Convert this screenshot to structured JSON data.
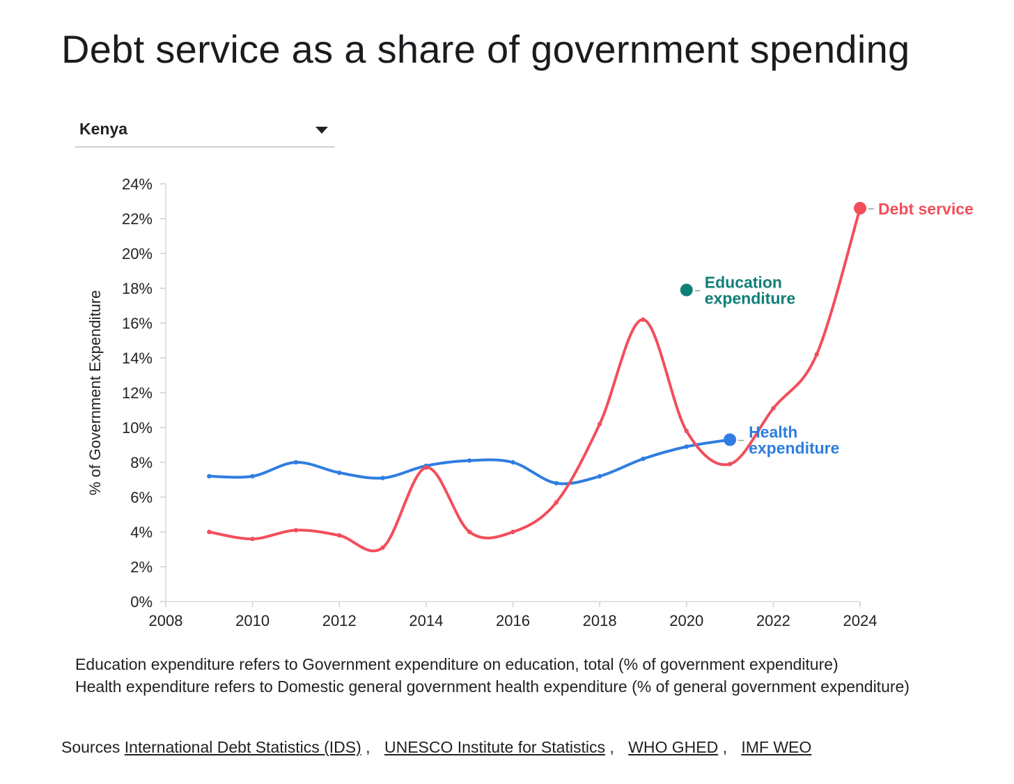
{
  "title": "Debt service as a share of government spending",
  "country_selector": {
    "selected": "Kenya"
  },
  "notes": [
    "Education expenditure refers to Government expenditure on education, total (% of government expenditure)",
    "Health expenditure refers to Domestic general government health expenditure (% of general government expenditure)"
  ],
  "sources": {
    "label": "Sources",
    "links": [
      "International Debt Statistics (IDS)",
      "UNESCO Institute for Statistics",
      "WHO GHED",
      "IMF WEO"
    ]
  },
  "chart_data": {
    "type": "line",
    "ylabel": "% of Government Expenditure",
    "xlabel": "",
    "xlim": [
      2008,
      2024
    ],
    "ylim": [
      0,
      24
    ],
    "x_ticks": [
      "2008",
      "2010",
      "2012",
      "2014",
      "2016",
      "2018",
      "2020",
      "2022",
      "2024"
    ],
    "y_ticks": [
      "0%",
      "2%",
      "4%",
      "6%",
      "8%",
      "10%",
      "12%",
      "14%",
      "16%",
      "18%",
      "20%",
      "22%",
      "24%"
    ],
    "grid": false,
    "legend": "direct labels at series ends",
    "series": [
      {
        "name": "Debt service",
        "color": "#f24e5c",
        "points": [
          [
            2009,
            4.0
          ],
          [
            2010,
            3.6
          ],
          [
            2011,
            4.1
          ],
          [
            2012,
            3.8
          ],
          [
            2013,
            3.1
          ],
          [
            2014,
            7.7
          ],
          [
            2015,
            4.0
          ],
          [
            2016,
            4.0
          ],
          [
            2017,
            5.7
          ],
          [
            2018,
            10.2
          ],
          [
            2019,
            16.2
          ],
          [
            2020,
            9.8
          ],
          [
            2021,
            7.9
          ],
          [
            2022,
            11.1
          ],
          [
            2023,
            14.2
          ],
          [
            2024,
            22.6
          ]
        ]
      },
      {
        "name": "Health expenditure",
        "color": "#2f7de1",
        "points": [
          [
            2009,
            7.2
          ],
          [
            2010,
            7.2
          ],
          [
            2011,
            8.0
          ],
          [
            2012,
            7.4
          ],
          [
            2013,
            7.1
          ],
          [
            2014,
            7.8
          ],
          [
            2015,
            8.1
          ],
          [
            2016,
            8.0
          ],
          [
            2017,
            6.8
          ],
          [
            2018,
            7.2
          ],
          [
            2019,
            8.2
          ],
          [
            2020,
            8.9
          ],
          [
            2021,
            9.3
          ]
        ]
      },
      {
        "name": "Education expenditure",
        "color": "#0f7f78",
        "points": [
          [
            2020,
            17.9
          ]
        ]
      }
    ]
  }
}
